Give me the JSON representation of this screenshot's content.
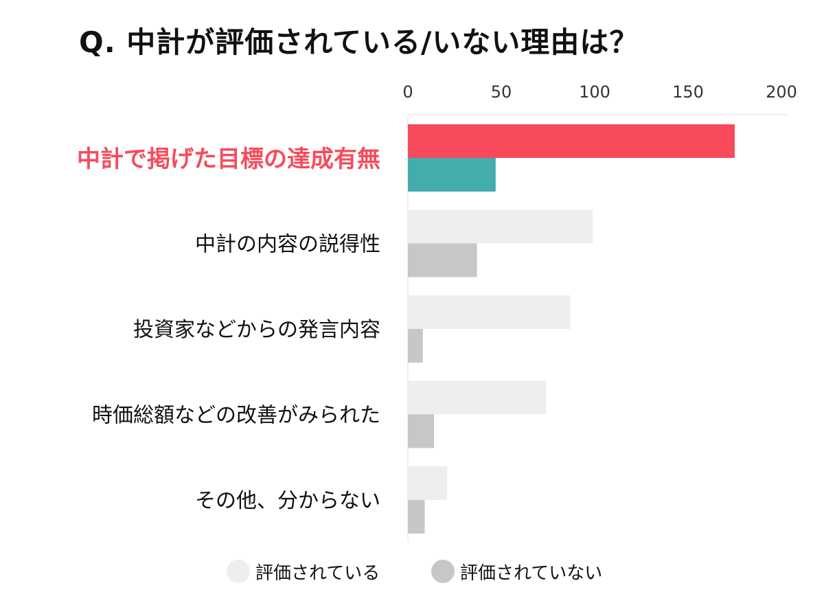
{
  "chart_data": {
    "type": "bar",
    "orientation": "horizontal",
    "title": "Q. 中計が評価されている/いない理由は？",
    "categories": [
      "中計で掲げた目標の達成有無",
      "中計の内容の説得性",
      "投資家などからの発言内容",
      "時価総額などの改善がみられた",
      "その他、分からない"
    ],
    "highlight_category_index": 0,
    "xlim": [
      0,
      200
    ],
    "x_ticks": [
      0,
      50,
      100,
      150,
      200
    ],
    "tick_labels": [
      "0",
      "50",
      "100",
      "150",
      "200"
    ],
    "axis_position": "top",
    "grid": false,
    "legend_position": "bottom",
    "series": [
      {
        "name": "評価されている",
        "values": [
          175,
          99,
          87,
          74,
          21
        ]
      },
      {
        "name": "評価されていない",
        "values": [
          47,
          37,
          8,
          14,
          9
        ]
      }
    ],
    "colors": {
      "highlight_series_1": "#F74B5C",
      "highlight_series_2": "#43ACAD",
      "series_1": "#EEEEEE",
      "series_2": "#C8C7C6",
      "highlight_label": "#F74B5C",
      "label": "#111111",
      "axis": "#999999"
    }
  }
}
